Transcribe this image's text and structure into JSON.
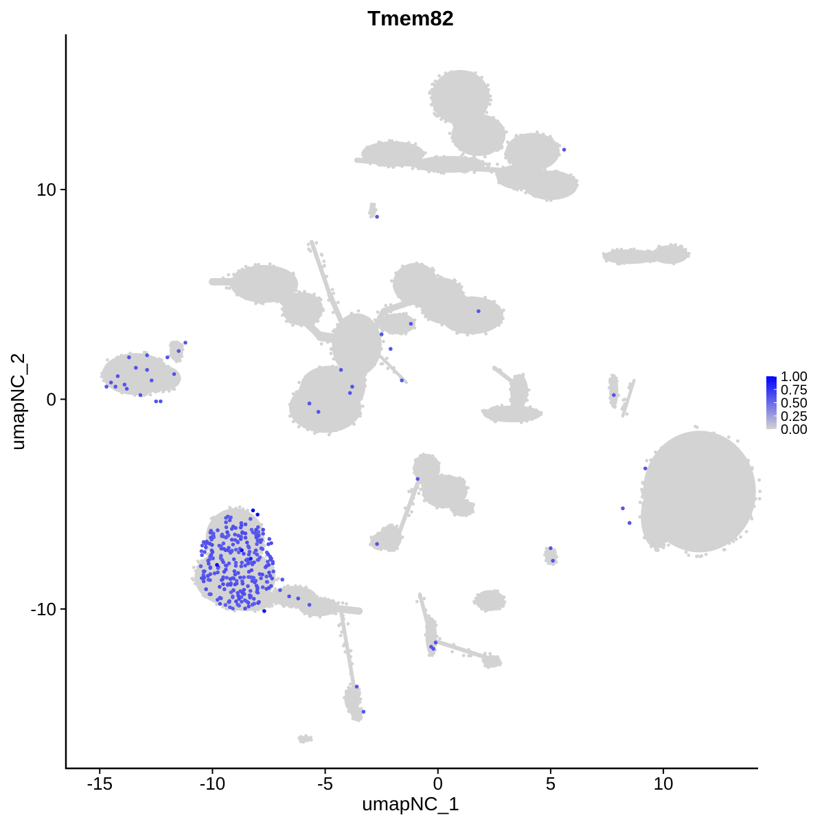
{
  "chart_data": {
    "type": "scatter",
    "title": "Tmem82",
    "xlabel": "umapNC_1",
    "ylabel": "umapNC_2",
    "xlim": [
      -16.5,
      14.2
    ],
    "ylim": [
      -17.6,
      17.4
    ],
    "x_ticks": [
      -15,
      -10,
      -5,
      0,
      5,
      10
    ],
    "x_tick_labels": [
      "-15",
      "-10",
      "-5",
      "0",
      "5",
      "10"
    ],
    "y_ticks": [
      -10,
      0,
      10
    ],
    "y_tick_labels": [
      "-10",
      "0",
      "10"
    ],
    "grid": false,
    "legend": {
      "position": "right",
      "labels": [
        "1.00",
        "0.75",
        "0.50",
        "0.25",
        "0.00"
      ],
      "values": [
        1.0,
        0.75,
        0.5,
        0.25,
        0.0
      ]
    },
    "colors": {
      "low": "#d3d3d3",
      "high": "#0000ff",
      "mid": "#8a5cf5"
    },
    "clusters": [
      {
        "shape": "ellipse",
        "cx": 1.0,
        "cy": 14.4,
        "rx": 1.3,
        "ry": 1.3
      },
      {
        "shape": "ellipse",
        "cx": 1.8,
        "cy": 12.6,
        "rx": 1.2,
        "ry": 1.0
      },
      {
        "shape": "ellipse",
        "cx": -2.0,
        "cy": 11.7,
        "rx": 1.4,
        "ry": 0.6
      },
      {
        "shape": "ellipse",
        "cx": 0.5,
        "cy": 11.2,
        "rx": 1.6,
        "ry": 0.4
      },
      {
        "shape": "ellipse",
        "cx": 4.2,
        "cy": 11.8,
        "rx": 1.2,
        "ry": 0.9
      },
      {
        "shape": "ellipse",
        "cx": 5.0,
        "cy": 10.2,
        "rx": 1.2,
        "ry": 0.7
      },
      {
        "shape": "ellipse",
        "cx": 3.6,
        "cy": 10.6,
        "rx": 1.0,
        "ry": 0.6
      },
      {
        "shape": "ellipse",
        "cx": -2.9,
        "cy": 9.0,
        "rx": 0.15,
        "ry": 0.35
      },
      {
        "shape": "ellipse",
        "cx": 8.5,
        "cy": 6.8,
        "rx": 1.2,
        "ry": 0.35
      },
      {
        "shape": "ellipse",
        "cx": 10.3,
        "cy": 6.9,
        "rx": 0.8,
        "ry": 0.45
      },
      {
        "shape": "ellipse",
        "cx": -7.7,
        "cy": 5.5,
        "rx": 1.5,
        "ry": 0.9
      },
      {
        "shape": "ellipse",
        "cx": -6.0,
        "cy": 4.3,
        "rx": 0.9,
        "ry": 0.8
      },
      {
        "shape": "ellipse",
        "cx": -3.6,
        "cy": 2.6,
        "rx": 1.1,
        "ry": 1.5
      },
      {
        "shape": "ellipse",
        "cx": -1.0,
        "cy": 5.5,
        "rx": 1.0,
        "ry": 1.0
      },
      {
        "shape": "ellipse",
        "cx": 0.2,
        "cy": 4.7,
        "rx": 1.0,
        "ry": 1.1
      },
      {
        "shape": "ellipse",
        "cx": 1.5,
        "cy": 4.0,
        "rx": 1.4,
        "ry": 0.9
      },
      {
        "shape": "ellipse",
        "cx": -1.8,
        "cy": 3.6,
        "rx": 0.8,
        "ry": 0.5
      },
      {
        "shape": "ellipse",
        "cx": -4.8,
        "cy": 0.6,
        "rx": 1.3,
        "ry": 1.0
      },
      {
        "shape": "ellipse",
        "cx": -5.0,
        "cy": -0.4,
        "rx": 1.6,
        "ry": 1.2
      },
      {
        "shape": "ellipse",
        "cx": -3.6,
        "cy": 0.8,
        "rx": 0.4,
        "ry": 1.0
      },
      {
        "shape": "ellipse",
        "cx": -13.4,
        "cy": 1.2,
        "rx": 1.5,
        "ry": 1.0
      },
      {
        "shape": "ellipse",
        "cx": -12.2,
        "cy": 1.0,
        "rx": 0.8,
        "ry": 0.6
      },
      {
        "shape": "ellipse",
        "cx": -11.6,
        "cy": 2.3,
        "rx": 0.3,
        "ry": 0.5
      },
      {
        "shape": "ellipse",
        "cx": 3.6,
        "cy": 0.4,
        "rx": 0.4,
        "ry": 0.8
      },
      {
        "shape": "ellipse",
        "cx": 3.3,
        "cy": -0.7,
        "rx": 1.3,
        "ry": 0.4
      },
      {
        "shape": "ellipse",
        "cx": 7.8,
        "cy": 0.4,
        "rx": 0.2,
        "ry": 0.8
      },
      {
        "shape": "ellipse",
        "cx": 11.6,
        "cy": -4.4,
        "rx": 2.5,
        "ry": 2.9
      },
      {
        "shape": "ellipse",
        "cx": 9.7,
        "cy": -5.6,
        "rx": 0.7,
        "ry": 1.5
      },
      {
        "shape": "ellipse",
        "cx": -0.5,
        "cy": -3.3,
        "rx": 0.6,
        "ry": 0.7
      },
      {
        "shape": "ellipse",
        "cx": 0.3,
        "cy": -4.4,
        "rx": 1.0,
        "ry": 0.8
      },
      {
        "shape": "ellipse",
        "cx": 1.1,
        "cy": -5.2,
        "rx": 0.5,
        "ry": 0.4
      },
      {
        "shape": "ellipse",
        "cx": -2.1,
        "cy": -6.6,
        "rx": 0.5,
        "ry": 0.6
      },
      {
        "shape": "ellipse",
        "cx": -2.6,
        "cy": -6.8,
        "rx": 0.4,
        "ry": 0.4
      },
      {
        "shape": "ellipse",
        "cx": -9.0,
        "cy": -6.6,
        "rx": 1.3,
        "ry": 1.4
      },
      {
        "shape": "ellipse",
        "cx": -9.0,
        "cy": -8.5,
        "rx": 1.8,
        "ry": 1.4
      },
      {
        "shape": "ellipse",
        "cx": -8.5,
        "cy": -9.5,
        "rx": 1.3,
        "ry": 0.6
      },
      {
        "shape": "ellipse",
        "cx": -6.4,
        "cy": -9.4,
        "rx": 1.0,
        "ry": 0.5
      },
      {
        "shape": "ellipse",
        "cx": -5.3,
        "cy": -9.9,
        "rx": 0.9,
        "ry": 0.45
      },
      {
        "shape": "ellipse",
        "cx": -3.8,
        "cy": -14.3,
        "rx": 0.35,
        "ry": 0.6
      },
      {
        "shape": "ellipse",
        "cx": -3.6,
        "cy": -15.0,
        "rx": 0.25,
        "ry": 0.35
      },
      {
        "shape": "ellipse",
        "cx": 2.3,
        "cy": -9.6,
        "rx": 0.65,
        "ry": 0.5
      },
      {
        "shape": "ellipse",
        "cx": -0.3,
        "cy": -11.3,
        "rx": 0.25,
        "ry": 0.9
      },
      {
        "shape": "ellipse",
        "cx": 2.4,
        "cy": -12.5,
        "rx": 0.4,
        "ry": 0.3
      },
      {
        "shape": "ellipse",
        "cx": 5.0,
        "cy": -7.5,
        "rx": 0.25,
        "ry": 0.4
      },
      {
        "shape": "ellipse",
        "cx": -5.9,
        "cy": -16.2,
        "rx": 0.3,
        "ry": 0.15
      },
      {
        "shape": "segment",
        "x1": -10.0,
        "y1": 5.6,
        "x2": -7.2,
        "y2": 5.6,
        "w": 0.35
      },
      {
        "shape": "segment",
        "x1": -7.0,
        "y1": 4.8,
        "x2": -5.2,
        "y2": 3.0,
        "w": 0.35
      },
      {
        "shape": "segment",
        "x1": -5.2,
        "y1": 3.0,
        "x2": -2.8,
        "y2": 2.6,
        "w": 0.45
      },
      {
        "shape": "segment",
        "x1": -5.6,
        "y1": 7.5,
        "x2": -4.8,
        "y2": 5.0,
        "w": 0.2
      },
      {
        "shape": "segment",
        "x1": -4.8,
        "y1": 5.0,
        "x2": -3.8,
        "y2": 2.5,
        "w": 0.25
      },
      {
        "shape": "segment",
        "x1": -3.6,
        "y1": 1.6,
        "x2": -2.4,
        "y2": 4.2,
        "w": 0.3
      },
      {
        "shape": "segment",
        "x1": -2.4,
        "y1": 4.2,
        "x2": -0.8,
        "y2": 4.8,
        "w": 0.3
      },
      {
        "shape": "segment",
        "x1": -2.6,
        "y1": 2.1,
        "x2": -1.4,
        "y2": 0.8,
        "w": 0.15
      },
      {
        "shape": "segment",
        "x1": -3.6,
        "y1": 11.4,
        "x2": 3.0,
        "y2": 10.9,
        "w": 0.25
      },
      {
        "shape": "segment",
        "x1": -1.8,
        "y1": -6.6,
        "x2": -0.9,
        "y2": -4.0,
        "w": 0.2
      },
      {
        "shape": "segment",
        "x1": -6.0,
        "y1": -9.8,
        "x2": -3.5,
        "y2": -10.1,
        "w": 0.35
      },
      {
        "shape": "segment",
        "x1": -4.3,
        "y1": -10.1,
        "x2": -3.6,
        "y2": -14.5,
        "w": 0.18
      },
      {
        "shape": "segment",
        "x1": -0.8,
        "y1": -9.3,
        "x2": -0.2,
        "y2": -11.8,
        "w": 0.18
      },
      {
        "shape": "segment",
        "x1": -0.2,
        "y1": -11.5,
        "x2": 2.4,
        "y2": -12.4,
        "w": 0.2
      },
      {
        "shape": "segment",
        "x1": 8.2,
        "y1": -0.8,
        "x2": 8.7,
        "y2": 0.9,
        "w": 0.15
      },
      {
        "shape": "segment",
        "x1": 2.5,
        "y1": 1.5,
        "x2": 3.7,
        "y2": 0.5,
        "w": 0.2
      },
      {
        "shape": "segment",
        "x1": 4.8,
        "y1": -7.1,
        "x2": 5.1,
        "y2": -7.9,
        "w": 0.12
      }
    ],
    "expressing_points": [
      {
        "x": 5.6,
        "y": 11.9,
        "v": 0.6
      },
      {
        "x": -2.7,
        "y": 8.7,
        "v": 0.6
      },
      {
        "x": 1.8,
        "y": 4.2,
        "v": 0.6
      },
      {
        "x": -1.2,
        "y": 3.6,
        "v": 0.6
      },
      {
        "x": -2.5,
        "y": 3.1,
        "v": 0.6
      },
      {
        "x": -2.1,
        "y": 2.4,
        "v": 0.6
      },
      {
        "x": -4.3,
        "y": 1.4,
        "v": 0.6
      },
      {
        "x": -3.8,
        "y": 0.6,
        "v": 0.6
      },
      {
        "x": -3.9,
        "y": 0.3,
        "v": 0.6
      },
      {
        "x": -1.6,
        "y": 0.9,
        "v": 0.6
      },
      {
        "x": -5.7,
        "y": -0.2,
        "v": 0.6
      },
      {
        "x": -5.3,
        "y": -0.6,
        "v": 0.6
      },
      {
        "x": 7.8,
        "y": 0.2,
        "v": 0.6
      },
      {
        "x": 9.2,
        "y": -3.3,
        "v": 0.6
      },
      {
        "x": 8.2,
        "y": -5.2,
        "v": 0.6
      },
      {
        "x": 8.5,
        "y": -5.9,
        "v": 0.6
      },
      {
        "x": -0.9,
        "y": -3.8,
        "v": 0.6
      },
      {
        "x": -2.7,
        "y": -6.9,
        "v": 0.6
      },
      {
        "x": 5.0,
        "y": -7.1,
        "v": 0.6
      },
      {
        "x": 5.1,
        "y": -7.7,
        "v": 0.6
      },
      {
        "x": -3.6,
        "y": -13.7,
        "v": 0.6
      },
      {
        "x": -3.3,
        "y": -14.9,
        "v": 0.6
      },
      {
        "x": -0.3,
        "y": -11.8,
        "v": 0.6
      },
      {
        "x": -0.1,
        "y": -11.6,
        "v": 0.6
      },
      {
        "x": -0.2,
        "y": -11.9,
        "v": 0.6
      },
      {
        "x": -14.7,
        "y": 0.6,
        "v": 0.6
      },
      {
        "x": -14.5,
        "y": 0.8,
        "v": 0.6
      },
      {
        "x": -14.3,
        "y": 0.6,
        "v": 0.6
      },
      {
        "x": -14.2,
        "y": 1.1,
        "v": 0.6
      },
      {
        "x": -13.9,
        "y": 0.7,
        "v": 0.6
      },
      {
        "x": -13.7,
        "y": 2.0,
        "v": 0.6
      },
      {
        "x": -13.4,
        "y": 1.5,
        "v": 0.6
      },
      {
        "x": -13.2,
        "y": 0.2,
        "v": 0.6
      },
      {
        "x": -12.9,
        "y": 2.1,
        "v": 0.6
      },
      {
        "x": -12.7,
        "y": 0.9,
        "v": 0.6
      },
      {
        "x": -12.5,
        "y": -0.1,
        "v": 0.6
      },
      {
        "x": -12.3,
        "y": -0.1,
        "v": 0.6
      },
      {
        "x": -12.0,
        "y": 2.0,
        "v": 0.6
      },
      {
        "x": -11.7,
        "y": 1.2,
        "v": 0.6
      },
      {
        "x": -11.5,
        "y": 2.3,
        "v": 0.6
      },
      {
        "x": -11.2,
        "y": 2.7,
        "v": 0.6
      },
      {
        "x": -13.8,
        "y": 0.5,
        "v": 0.6
      },
      {
        "x": -12.9,
        "y": 1.4,
        "v": 0.6
      },
      {
        "x": -8.2,
        "y": -5.3,
        "v": 1.0
      },
      {
        "x": -8.0,
        "y": -5.5,
        "v": 0.95
      },
      {
        "x": -9.8,
        "y": -7.9,
        "v": 0.95
      },
      {
        "x": -8.7,
        "y": -7.2,
        "v": 0.9
      },
      {
        "x": -8.3,
        "y": -7.6,
        "v": 0.85
      },
      {
        "x": -7.7,
        "y": -10.1,
        "v": 0.9
      },
      {
        "x": -7.0,
        "y": -9.1,
        "v": 0.6
      },
      {
        "x": -6.6,
        "y": -9.4,
        "v": 0.6
      },
      {
        "x": -6.2,
        "y": -9.5,
        "v": 0.6
      },
      {
        "x": -6.9,
        "y": -8.6,
        "v": 0.6
      },
      {
        "x": -5.7,
        "y": -9.8,
        "v": 0.6
      },
      {
        "x": -7.4,
        "y": -8.9,
        "v": 0.6
      }
    ],
    "expressing_region": {
      "cx": -8.9,
      "cy": -7.8,
      "rx": 1.7,
      "ry": 2.3,
      "count": 260
    }
  }
}
